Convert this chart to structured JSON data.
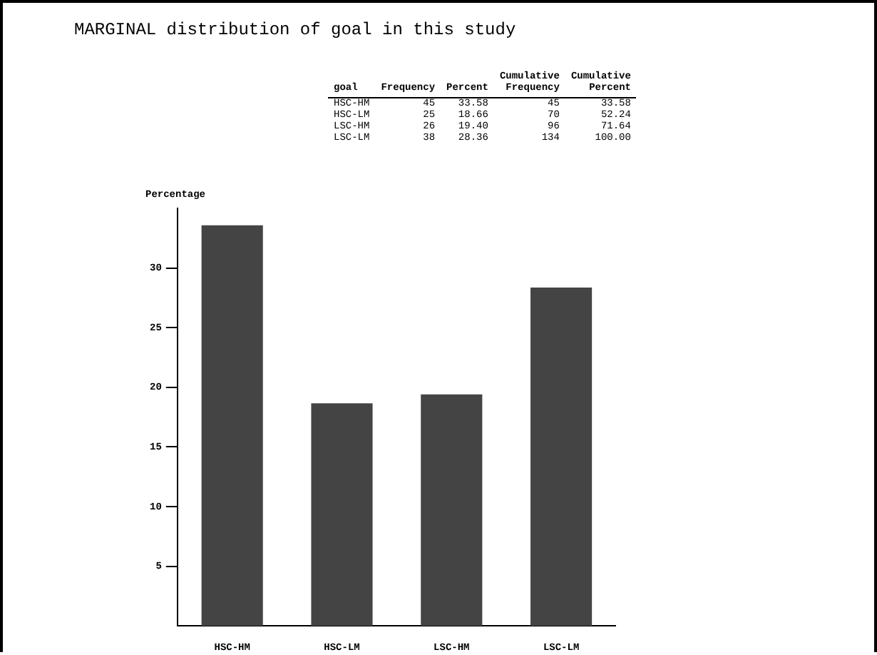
{
  "chart_data": {
    "type": "bar",
    "title": "MARGINAL distribution of goal in this study",
    "ylabel": "Percentage",
    "categories": [
      "HSC-HM",
      "HSC-LM",
      "LSC-HM",
      "LSC-LM"
    ],
    "values": [
      33.58,
      18.66,
      19.4,
      28.36
    ],
    "color": "#444444",
    "ylim": [
      0,
      35
    ],
    "yticks": [
      5,
      10,
      15,
      20,
      25,
      30
    ],
    "grid": false,
    "legend": false,
    "annotations": [
      "goal\tFrequency\tPercent\tCumulative\nFrequency\tCumulative\nPercent",
      "HSC-HM\t45\t33.58\t45\t33.58",
      "HSC-LM\t25\t18.66\t70\t52.24",
      "LSC-HM\t26\t19.40\t96\t71.64",
      "LSC-LM\t38\t28.36\t134\t100.00"
    ]
  }
}
